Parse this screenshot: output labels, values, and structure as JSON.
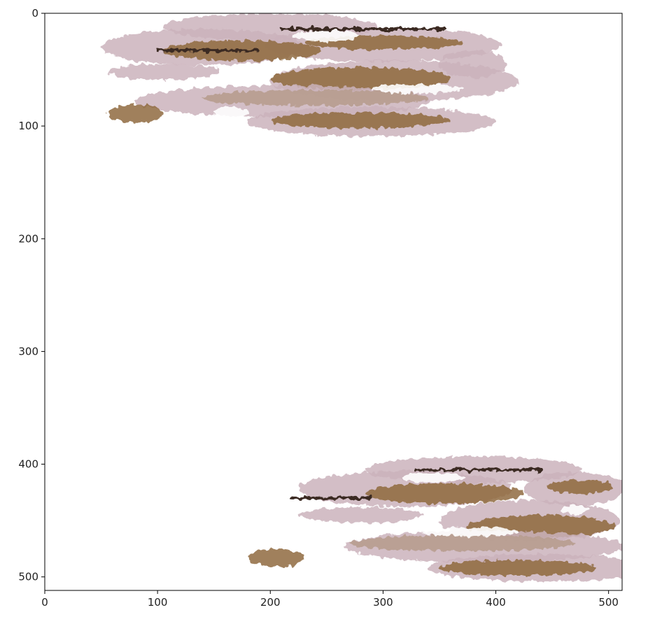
{
  "chart_data": {
    "type": "image",
    "title": "",
    "xlabel": "",
    "ylabel": "",
    "xlim": [
      0,
      512
    ],
    "ylim": [
      512,
      0
    ],
    "y_inverted": true,
    "grid": false,
    "legend": "none",
    "x_ticks": [
      0,
      100,
      200,
      300,
      400,
      500
    ],
    "y_ticks": [
      0,
      100,
      200,
      300,
      400,
      500
    ],
    "background_color": "#ffffff",
    "colors": {
      "pale_tissue": "#cbb3bc",
      "mid_tissue": "#b49a88",
      "dense_tissue": "#8f6a3e",
      "dark_streak": "#3a2a22",
      "axis": "#000000"
    },
    "regions": [
      {
        "name": "upper-tissue-cluster",
        "x_range": [
          50,
          405
        ],
        "y_range": [
          0,
          112
        ],
        "blobs": [
          {
            "cx": 200,
            "cy": 12,
            "rx": 95,
            "ry": 12,
            "tone": "pale"
          },
          {
            "cx": 140,
            "cy": 30,
            "rx": 90,
            "ry": 16,
            "tone": "pale"
          },
          {
            "cx": 300,
            "cy": 28,
            "rx": 105,
            "ry": 15,
            "tone": "pale"
          },
          {
            "cx": 175,
            "cy": 33,
            "rx": 70,
            "ry": 9,
            "tone": "dense"
          },
          {
            "cx": 300,
            "cy": 26,
            "rx": 70,
            "ry": 6,
            "tone": "dense"
          },
          {
            "cx": 380,
            "cy": 45,
            "rx": 30,
            "ry": 12,
            "tone": "pale"
          },
          {
            "cx": 105,
            "cy": 52,
            "rx": 50,
            "ry": 7,
            "tone": "pale"
          },
          {
            "cx": 310,
            "cy": 60,
            "rx": 110,
            "ry": 18,
            "tone": "pale"
          },
          {
            "cx": 280,
            "cy": 58,
            "rx": 80,
            "ry": 10,
            "tone": "dense"
          },
          {
            "cx": 210,
            "cy": 78,
            "rx": 130,
            "ry": 14,
            "tone": "pale"
          },
          {
            "cx": 240,
            "cy": 75,
            "rx": 100,
            "ry": 7,
            "tone": "mid"
          },
          {
            "cx": 290,
            "cy": 96,
            "rx": 110,
            "ry": 13,
            "tone": "pale"
          },
          {
            "cx": 280,
            "cy": 95,
            "rx": 80,
            "ry": 7,
            "tone": "dense"
          },
          {
            "cx": 80,
            "cy": 89,
            "rx": 25,
            "ry": 8,
            "tone": "dense"
          }
        ],
        "streaks": [
          {
            "x1": 210,
            "x2": 355,
            "y": 14,
            "tone": "dark"
          },
          {
            "x1": 100,
            "x2": 190,
            "y": 33,
            "tone": "dark"
          }
        ],
        "voids": [
          {
            "cx": 250,
            "cy": 20,
            "rx": 30,
            "ry": 5
          },
          {
            "cx": 330,
            "cy": 67,
            "rx": 40,
            "ry": 4
          },
          {
            "cx": 165,
            "cy": 88,
            "rx": 15,
            "ry": 5
          }
        ]
      },
      {
        "name": "lower-tissue-cluster",
        "x_range": [
          170,
          512
        ],
        "y_range": [
          392,
          506
        ],
        "blobs": [
          {
            "cx": 380,
            "cy": 405,
            "rx": 95,
            "ry": 12,
            "tone": "pale"
          },
          {
            "cx": 320,
            "cy": 422,
            "rx": 95,
            "ry": 16,
            "tone": "pale"
          },
          {
            "cx": 470,
            "cy": 422,
            "rx": 45,
            "ry": 15,
            "tone": "pale"
          },
          {
            "cx": 355,
            "cy": 426,
            "rx": 70,
            "ry": 9,
            "tone": "dense"
          },
          {
            "cx": 475,
            "cy": 420,
            "rx": 30,
            "ry": 6,
            "tone": "dense"
          },
          {
            "cx": 280,
            "cy": 445,
            "rx": 55,
            "ry": 7,
            "tone": "pale"
          },
          {
            "cx": 430,
            "cy": 450,
            "rx": 80,
            "ry": 18,
            "tone": "pale"
          },
          {
            "cx": 440,
            "cy": 455,
            "rx": 65,
            "ry": 10,
            "tone": "dense"
          },
          {
            "cx": 390,
            "cy": 473,
            "rx": 125,
            "ry": 14,
            "tone": "pale"
          },
          {
            "cx": 370,
            "cy": 470,
            "rx": 100,
            "ry": 7,
            "tone": "mid"
          },
          {
            "cx": 440,
            "cy": 492,
            "rx": 100,
            "ry": 12,
            "tone": "pale"
          },
          {
            "cx": 420,
            "cy": 492,
            "rx": 70,
            "ry": 7,
            "tone": "dense"
          },
          {
            "cx": 205,
            "cy": 483,
            "rx": 25,
            "ry": 8,
            "tone": "dense"
          }
        ],
        "streaks": [
          {
            "x1": 330,
            "x2": 440,
            "y": 405,
            "tone": "dark"
          },
          {
            "x1": 220,
            "x2": 290,
            "y": 430,
            "tone": "dark"
          }
        ],
        "voids": [
          {
            "cx": 345,
            "cy": 412,
            "rx": 28,
            "ry": 4
          },
          {
            "cx": 375,
            "cy": 460,
            "rx": 45,
            "ry": 4
          },
          {
            "cx": 470,
            "cy": 440,
            "rx": 12,
            "ry": 4
          }
        ]
      }
    ]
  }
}
